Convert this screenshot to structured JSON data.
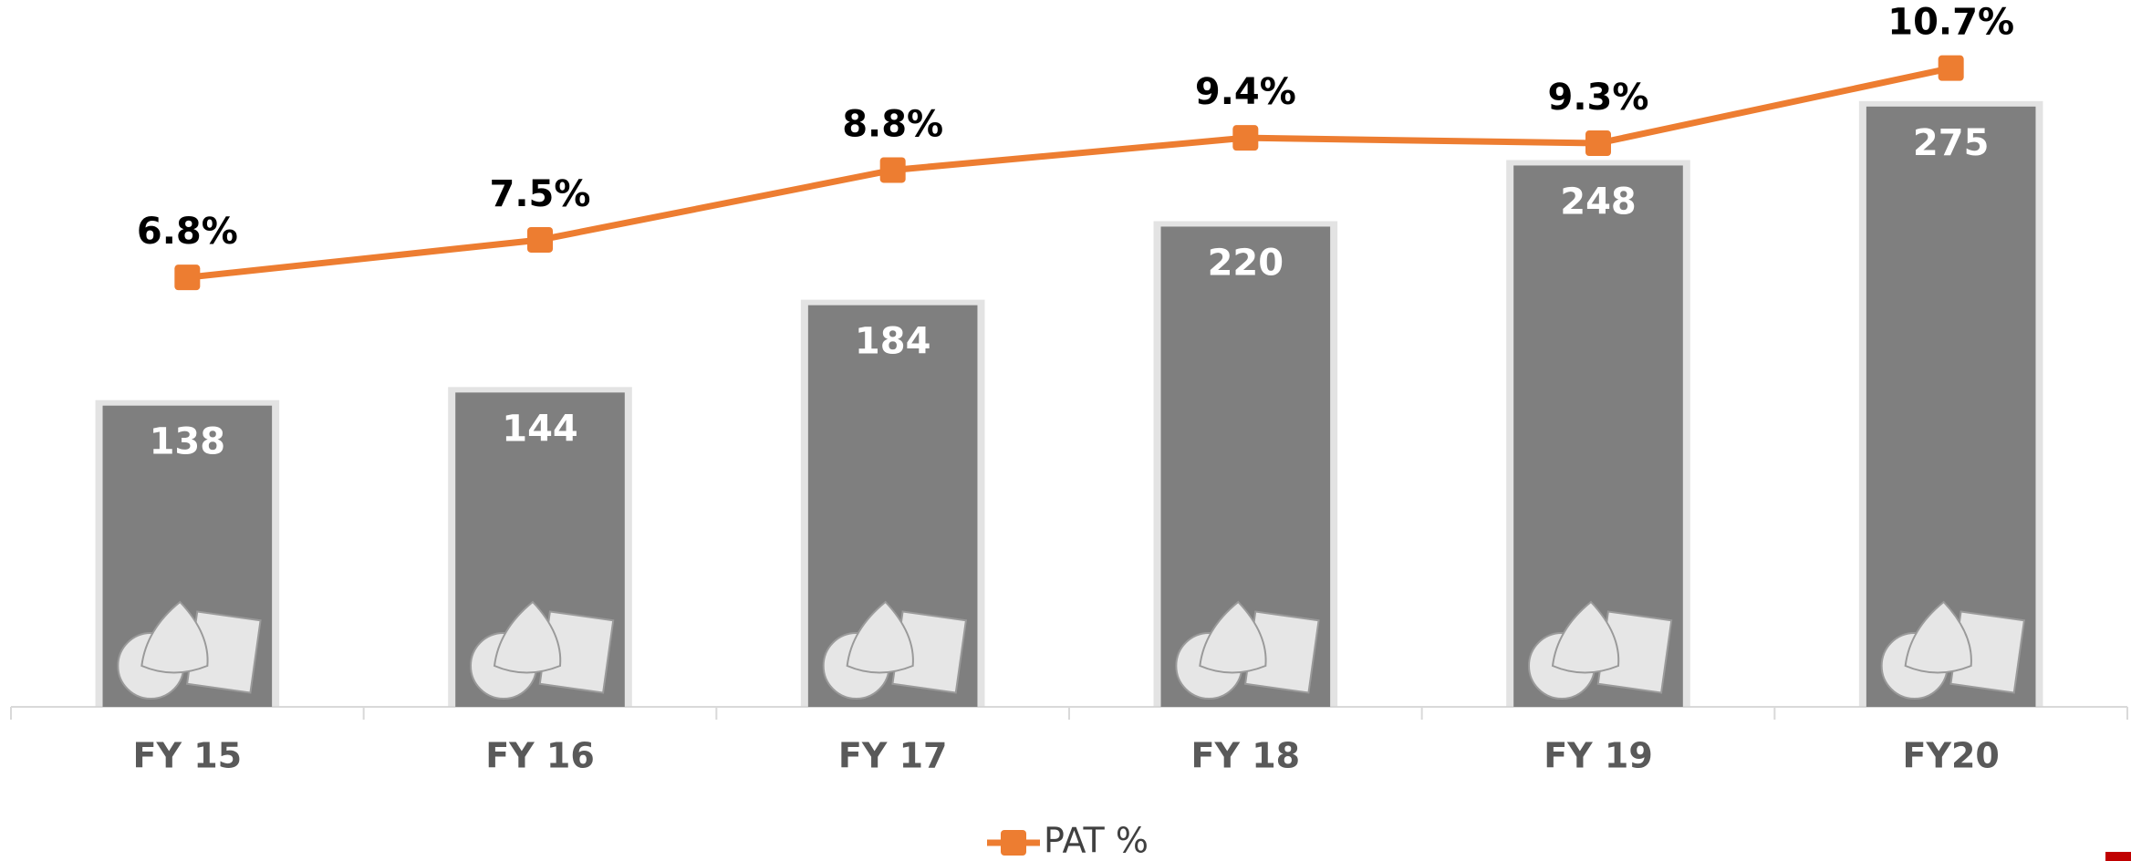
{
  "chart_data": {
    "type": "combo",
    "categories": [
      "FY 15",
      "FY 16",
      "FY 17",
      "FY 18",
      "FY 19",
      "FY20"
    ],
    "series": [
      {
        "type": "bar",
        "color": "#7f7f7f",
        "values": [
          138,
          144,
          184,
          220,
          248,
          275
        ]
      },
      {
        "type": "line",
        "name": "PAT %",
        "color": "#ed7d31",
        "axis": "y2",
        "values": [
          6.8,
          7.5,
          8.8,
          9.4,
          9.3,
          10.7
        ],
        "value_labels": [
          "6.8%",
          "7.5%",
          "8.8%",
          "9.4%",
          "9.3%",
          "10.7%"
        ]
      }
    ],
    "ylim": [
      0,
      300
    ],
    "y2lim": [
      -1.2,
      11
    ],
    "legend": "bottom"
  }
}
